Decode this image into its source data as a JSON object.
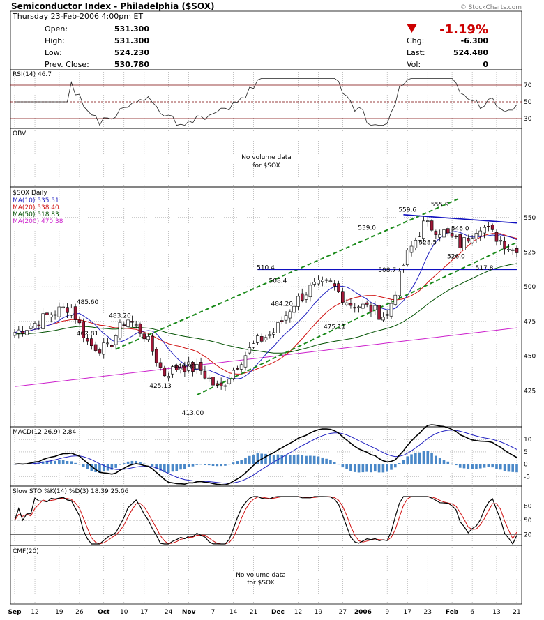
{
  "header": {
    "title": "Semiconductor Index - Philadelphia ($SOX)",
    "watermark": "© StockCharts.com",
    "datetime": "Thursday  23-Feb-2006  4:00pm ET",
    "open_label": "Open:",
    "open": "531.300",
    "high_label": "High:",
    "high": "531.300",
    "low_label": "Low:",
    "low": "524.230",
    "prev_label": "Prev. Close:",
    "prev": "530.780",
    "change_pct": "-1.19%",
    "chg_label": "Chg:",
    "chg": "-6.300",
    "last_label": "Last:",
    "last": "524.480",
    "vol_label": "Vol:",
    "vol": "0"
  },
  "colors": {
    "up": "#ffffff",
    "down": "#a01838",
    "ma10": "#2020c0",
    "ma20": "#d01010",
    "ma50": "#005000",
    "ma200": "#cc20cc",
    "trend": "#1a8a1a",
    "resist": "#1010c0",
    "red": "#cc0000"
  },
  "panels": {
    "rsi_label": "RSI(14) 46.7",
    "obv_label": "OBV",
    "obv_msg": "No volume data",
    "obv_msg2": "for $SOX",
    "price_label": "$SOX Daily",
    "ma10_label": "MA(10) 535.51",
    "ma20_label": "MA(20) 538.40",
    "ma50_label": "MA(50) 518.83",
    "ma200_label": "MA(200) 470.38",
    "macd_label": "MACD(12,26,9) 2.84",
    "sto_label": "Slow STO %K(14) %D(3)  18.39  25.06",
    "cmf_label": "CMF(20)",
    "cmf_msg": "No volume data",
    "cmf_msg2": "for $SOX"
  },
  "chart_data": [
    {
      "type": "candlestick",
      "title": "$SOX Daily",
      "ylim": [
        400,
        570
      ],
      "yticks": [
        425,
        450,
        475,
        500,
        525,
        550
      ],
      "x_labels": [
        "Sep",
        "12",
        "19",
        "26",
        "Oct",
        "10",
        "17",
        "24",
        "Nov",
        "7",
        "14",
        "21",
        "Dec",
        "12",
        "19",
        "27",
        "2006",
        "9",
        "17",
        "23",
        "Feb",
        "6",
        "13",
        "21"
      ],
      "closes_weekly_approx": [
        467,
        473,
        481,
        486,
        458,
        455,
        478,
        465,
        437,
        443,
        440,
        425,
        445,
        460,
        468,
        488,
        500,
        502,
        488,
        485,
        478,
        520,
        545,
        540,
        530,
        545,
        535,
        524.48
      ],
      "annotations": [
        {
          "text": "485.60",
          "value": 485.6
        },
        {
          "text": "483.20",
          "value": 483.2
        },
        {
          "text": "462.81",
          "value": 462.81
        },
        {
          "text": "446.90",
          "value": 446.9
        },
        {
          "text": "425.13",
          "value": 425.13
        },
        {
          "text": "413.00",
          "value": 413.0
        },
        {
          "text": "510.4",
          "value": 510.4
        },
        {
          "text": "508.4",
          "value": 508.4
        },
        {
          "text": "484.20",
          "value": 484.2
        },
        {
          "text": "475.11",
          "value": 475.11
        },
        {
          "text": "539.0",
          "value": 539.0
        },
        {
          "text": "559.6",
          "value": 559.6
        },
        {
          "text": "555.9",
          "value": 555.9
        },
        {
          "text": "546.0",
          "value": 546.0
        },
        {
          "text": "528.5",
          "value": 528.5
        },
        {
          "text": "526.0",
          "value": 526.0
        },
        {
          "text": "508.7",
          "value": 508.7
        },
        {
          "text": "517.8",
          "value": 517.8
        }
      ],
      "series": [
        {
          "name": "MA(10) 535.51",
          "last": 535.51
        },
        {
          "name": "MA(20) 538.40",
          "last": 538.4
        },
        {
          "name": "MA(50) 518.83",
          "last": 518.83
        },
        {
          "name": "MA(200) 470.38",
          "last": 470.38
        }
      ]
    },
    {
      "type": "line",
      "title": "RSI(14) 46.7",
      "ylim": [
        20,
        80
      ],
      "yticks": [
        30,
        50,
        70
      ],
      "last": 46.7
    },
    {
      "type": "bar",
      "title": "MACD(12,26,9) 2.84",
      "ylim": [
        -8,
        14
      ],
      "yticks": [
        -5,
        0,
        5,
        10
      ],
      "last": 2.84
    },
    {
      "type": "line",
      "title": "Slow STO %K(14) %D(3)",
      "ylim": [
        0,
        100
      ],
      "yticks": [
        20,
        50,
        80
      ],
      "series": [
        {
          "name": "%K",
          "last": 18.39
        },
        {
          "name": "%D",
          "last": 25.06
        }
      ]
    }
  ]
}
